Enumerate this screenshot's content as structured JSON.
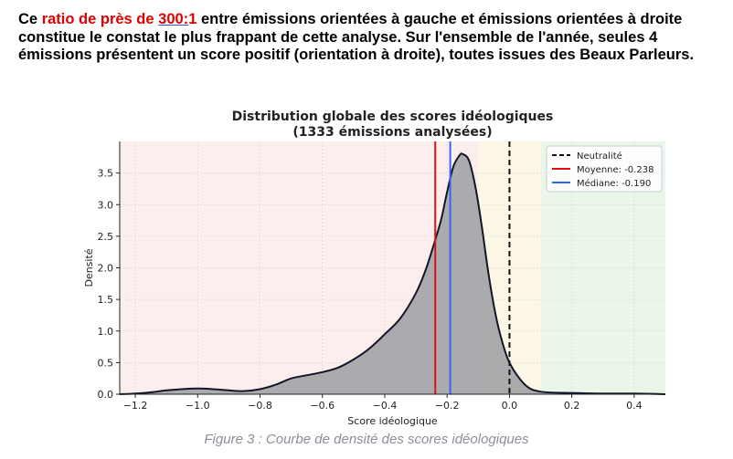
{
  "paragraph": {
    "part1": "Ce ",
    "part2": "ratio de près de ",
    "part3": "300:",
    "part4": "1",
    "part5": " entre émissions orientées à gauche et émissions orientées à droite constitue le constat le plus frappant de cette analyse. Sur l'ensemble de l'année, seules 4 émissions présentent un score positif (orientation à droite), toutes issues des Beaux Parleurs."
  },
  "caption": "Figure 3 : Courbe de densité des scores idéologiques",
  "colors": {
    "left_zone": "#fdeeee",
    "center_zone": "#fdf8e6",
    "right_zone": "#eaf6ea",
    "density_fill": "#a6a6ab",
    "density_line": "#15152a",
    "mean_line": "#dd1111",
    "median_line": "#3366ee",
    "neutral_line": "#111111"
  },
  "chart_data": {
    "type": "area",
    "title": "Distribution globale des scores idéologiques",
    "subtitle": "(1333 émissions analysées)",
    "xlabel": "Score idéologique",
    "ylabel": "Densité",
    "xlim": [
      -1.25,
      0.5
    ],
    "ylim": [
      0,
      4.0
    ],
    "xticks": [
      -1.2,
      -1.0,
      -0.8,
      -0.6,
      -0.4,
      -0.2,
      0.0,
      0.2,
      0.4
    ],
    "xtick_labels": [
      "−1.2",
      "−1.0",
      "−0.8",
      "−0.6",
      "−0.4",
      "−0.2",
      "0.0",
      "0.2",
      "0.4"
    ],
    "yticks": [
      0.0,
      0.5,
      1.0,
      1.5,
      2.0,
      2.5,
      3.0,
      3.5
    ],
    "ytick_labels": [
      "0.0",
      "0.5",
      "1.0",
      "1.5",
      "2.0",
      "2.5",
      "3.0",
      "3.5"
    ],
    "grid": true,
    "zones": [
      {
        "from": -1.25,
        "to": -0.1,
        "color": "#fdeeee"
      },
      {
        "from": -0.1,
        "to": 0.1,
        "color": "#fdf8e6"
      },
      {
        "from": 0.1,
        "to": 0.5,
        "color": "#eaf6ea"
      }
    ],
    "series": [
      {
        "x": [
          -1.25,
          -1.2,
          -1.15,
          -1.1,
          -1.05,
          -1.0,
          -0.95,
          -0.9,
          -0.85,
          -0.8,
          -0.75,
          -0.7,
          -0.65,
          -0.6,
          -0.55,
          -0.5,
          -0.45,
          -0.4,
          -0.35,
          -0.3,
          -0.27,
          -0.25,
          -0.22,
          -0.2,
          -0.18,
          -0.16,
          -0.15,
          -0.13,
          -0.11,
          -0.09,
          -0.07,
          -0.05,
          -0.03,
          0.0,
          0.05,
          0.1,
          0.2,
          0.3,
          0.4,
          0.5
        ],
        "y": [
          0.0,
          0.01,
          0.03,
          0.06,
          0.08,
          0.09,
          0.08,
          0.06,
          0.05,
          0.08,
          0.15,
          0.25,
          0.3,
          0.35,
          0.42,
          0.55,
          0.72,
          0.95,
          1.2,
          1.6,
          1.95,
          2.25,
          2.75,
          3.2,
          3.6,
          3.78,
          3.8,
          3.7,
          3.3,
          2.7,
          2.0,
          1.4,
          0.95,
          0.5,
          0.15,
          0.04,
          0.02,
          0.01,
          0.01,
          0.0
        ]
      }
    ],
    "vlines": [
      {
        "name": "Neutralité",
        "x": 0.0,
        "style": "dashed",
        "color": "#111111"
      },
      {
        "name": "Moyenne: -0.238",
        "x": -0.238,
        "style": "solid",
        "color": "#dd1111"
      },
      {
        "name": "Médiane: -0.190",
        "x": -0.19,
        "style": "solid",
        "color": "#3366ee"
      }
    ],
    "legend_position": "top-right"
  }
}
